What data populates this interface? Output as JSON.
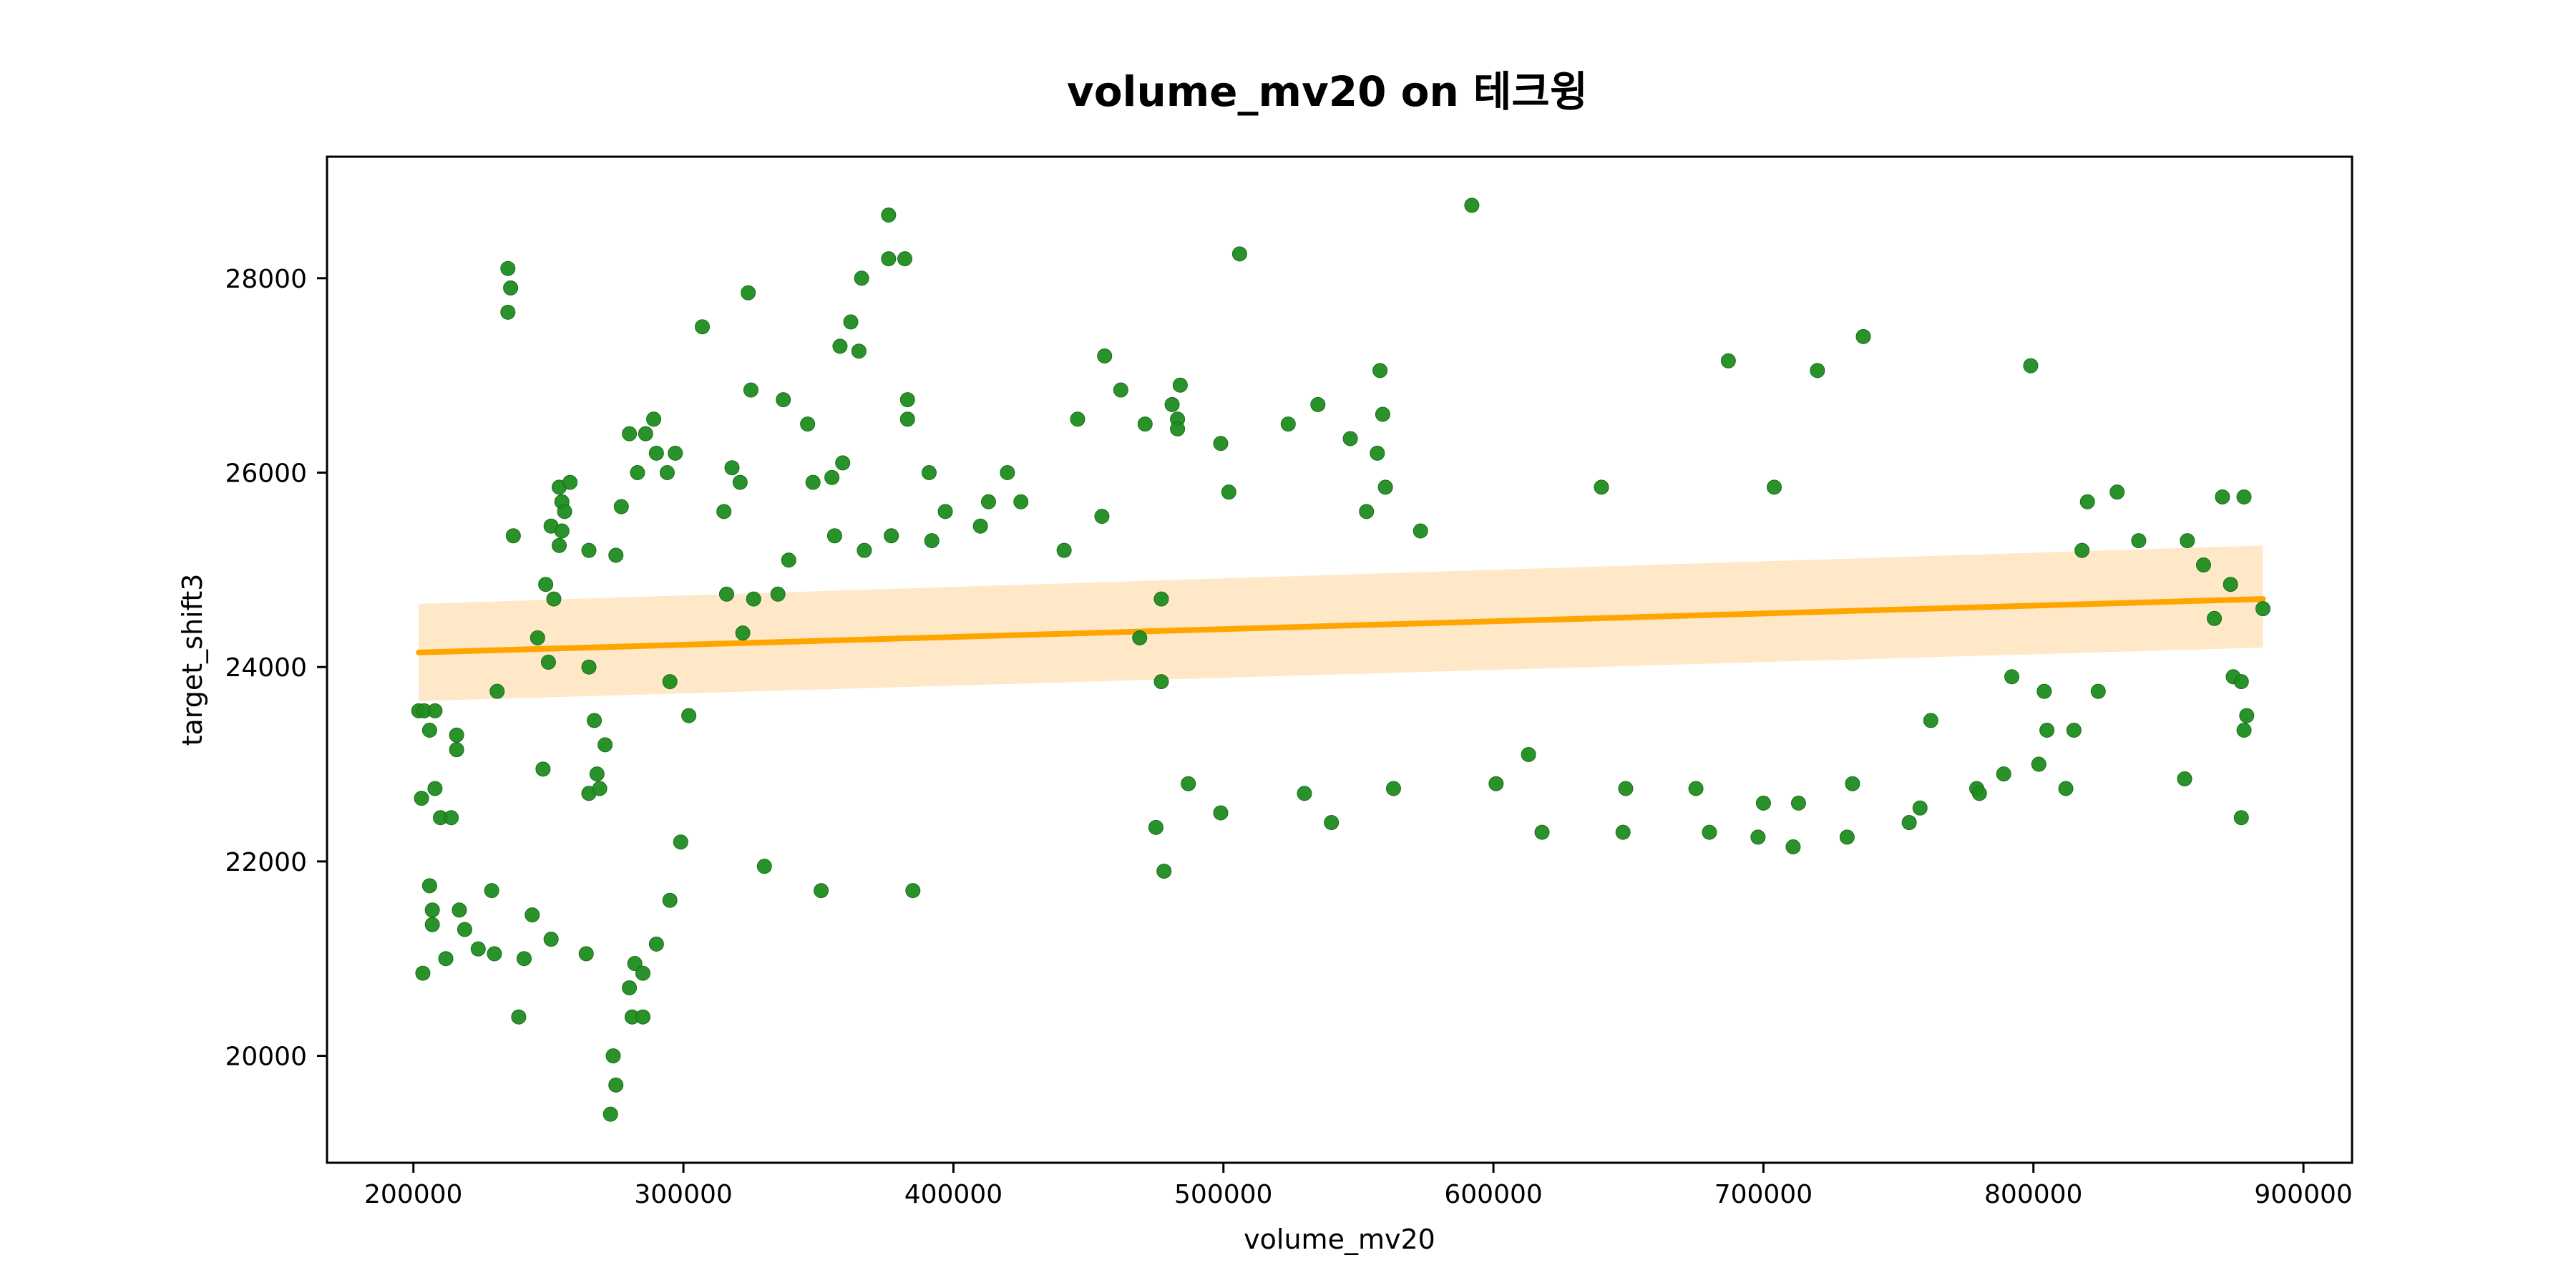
{
  "chart_data": {
    "type": "scatter",
    "title": "volume_mv20 on 테크윙",
    "xlabel": "volume_mv20",
    "ylabel": "target_shift3",
    "xlim": [
      168000,
      918000
    ],
    "ylim": [
      18900,
      29250
    ],
    "xticks": [
      200000,
      300000,
      400000,
      500000,
      600000,
      700000,
      800000,
      900000
    ],
    "yticks": [
      20000,
      22000,
      24000,
      26000,
      28000
    ],
    "grid": false,
    "legend": "none",
    "colors": {
      "points": "#1f8c1f",
      "regression_line": "#ffa500",
      "confidence_band": "#ffe8c8"
    },
    "regression": {
      "x": [
        202000,
        885000
      ],
      "y": [
        24150,
        24700
      ],
      "ci_lower": [
        23650,
        24200
      ],
      "ci_upper": [
        24650,
        25250
      ]
    },
    "points": [
      [
        202000,
        23550
      ],
      [
        203000,
        22650
      ],
      [
        203500,
        20850
      ],
      [
        204000,
        23550
      ],
      [
        206000,
        23350
      ],
      [
        206000,
        21750
      ],
      [
        207000,
        21500
      ],
      [
        207000,
        21350
      ],
      [
        208000,
        23550
      ],
      [
        208000,
        22750
      ],
      [
        210000,
        22450
      ],
      [
        212000,
        21000
      ],
      [
        214000,
        22450
      ],
      [
        216000,
        23300
      ],
      [
        216000,
        23150
      ],
      [
        217000,
        21500
      ],
      [
        219000,
        21300
      ],
      [
        224000,
        21100
      ],
      [
        229000,
        21700
      ],
      [
        230000,
        21050
      ],
      [
        231000,
        23750
      ],
      [
        235000,
        28100
      ],
      [
        235000,
        27650
      ],
      [
        236000,
        27900
      ],
      [
        237000,
        25350
      ],
      [
        239000,
        20400
      ],
      [
        241000,
        21000
      ],
      [
        244000,
        21450
      ],
      [
        246000,
        24300
      ],
      [
        248000,
        22950
      ],
      [
        249000,
        24850
      ],
      [
        250000,
        24050
      ],
      [
        251000,
        25450
      ],
      [
        252000,
        24700
      ],
      [
        251000,
        21200
      ],
      [
        254000,
        25250
      ],
      [
        254000,
        25850
      ],
      [
        255000,
        25700
      ],
      [
        255000,
        25400
      ],
      [
        256000,
        25600
      ],
      [
        258000,
        25900
      ],
      [
        264000,
        21050
      ],
      [
        265000,
        25200
      ],
      [
        265000,
        24000
      ],
      [
        265000,
        22700
      ],
      [
        267000,
        23450
      ],
      [
        268000,
        22900
      ],
      [
        269000,
        22750
      ],
      [
        271000,
        23200
      ],
      [
        273000,
        19400
      ],
      [
        274000,
        20000
      ],
      [
        275000,
        25150
      ],
      [
        275000,
        19700
      ],
      [
        277000,
        25650
      ],
      [
        280000,
        26400
      ],
      [
        280000,
        20700
      ],
      [
        281000,
        20400
      ],
      [
        282000,
        20950
      ],
      [
        283000,
        26000
      ],
      [
        285000,
        20400
      ],
      [
        285000,
        20850
      ],
      [
        286000,
        26400
      ],
      [
        289000,
        26550
      ],
      [
        290000,
        26200
      ],
      [
        290000,
        21150
      ],
      [
        294000,
        26000
      ],
      [
        295000,
        23850
      ],
      [
        295000,
        21600
      ],
      [
        297000,
        26200
      ],
      [
        299000,
        22200
      ],
      [
        302000,
        23500
      ],
      [
        307000,
        27500
      ],
      [
        315000,
        25600
      ],
      [
        316000,
        24750
      ],
      [
        318000,
        26050
      ],
      [
        321000,
        25900
      ],
      [
        322000,
        24350
      ],
      [
        324000,
        27850
      ],
      [
        325000,
        26850
      ],
      [
        326000,
        24700
      ],
      [
        330000,
        21950
      ],
      [
        335000,
        24750
      ],
      [
        337000,
        26750
      ],
      [
        339000,
        25100
      ],
      [
        346000,
        26500
      ],
      [
        348000,
        25900
      ],
      [
        351000,
        21700
      ],
      [
        355000,
        25950
      ],
      [
        356000,
        25350
      ],
      [
        358000,
        27300
      ],
      [
        359000,
        26100
      ],
      [
        362000,
        27550
      ],
      [
        365000,
        27250
      ],
      [
        366000,
        28000
      ],
      [
        367000,
        25200
      ],
      [
        376000,
        28650
      ],
      [
        376000,
        28200
      ],
      [
        377000,
        25350
      ],
      [
        382000,
        28200
      ],
      [
        383000,
        26750
      ],
      [
        383000,
        26550
      ],
      [
        385000,
        21700
      ],
      [
        391000,
        26000
      ],
      [
        392000,
        25300
      ],
      [
        397000,
        25600
      ],
      [
        410000,
        25450
      ],
      [
        413000,
        25700
      ],
      [
        420000,
        26000
      ],
      [
        425000,
        25700
      ],
      [
        441000,
        25200
      ],
      [
        446000,
        26550
      ],
      [
        455000,
        25550
      ],
      [
        456000,
        27200
      ],
      [
        462000,
        26850
      ],
      [
        469000,
        24300
      ],
      [
        471000,
        26500
      ],
      [
        475000,
        22350
      ],
      [
        477000,
        23850
      ],
      [
        477000,
        24700
      ],
      [
        478000,
        21900
      ],
      [
        481000,
        26700
      ],
      [
        483000,
        26550
      ],
      [
        483000,
        26450
      ],
      [
        484000,
        26900
      ],
      [
        487000,
        22800
      ],
      [
        499000,
        22500
      ],
      [
        499000,
        26300
      ],
      [
        502000,
        25800
      ],
      [
        506000,
        28250
      ],
      [
        524000,
        26500
      ],
      [
        530000,
        22700
      ],
      [
        535000,
        26700
      ],
      [
        540000,
        22400
      ],
      [
        547000,
        26350
      ],
      [
        553000,
        25600
      ],
      [
        557000,
        26200
      ],
      [
        558000,
        27050
      ],
      [
        559000,
        26600
      ],
      [
        560000,
        25850
      ],
      [
        563000,
        22750
      ],
      [
        573000,
        25400
      ],
      [
        592000,
        28750
      ],
      [
        601000,
        22800
      ],
      [
        613000,
        23100
      ],
      [
        618000,
        22300
      ],
      [
        640000,
        25850
      ],
      [
        648000,
        22300
      ],
      [
        649000,
        22750
      ],
      [
        675000,
        22750
      ],
      [
        680000,
        22300
      ],
      [
        687000,
        27150
      ],
      [
        698000,
        22250
      ],
      [
        700000,
        22600
      ],
      [
        704000,
        25850
      ],
      [
        711000,
        22150
      ],
      [
        713000,
        22600
      ],
      [
        720000,
        27050
      ],
      [
        731000,
        22250
      ],
      [
        733000,
        22800
      ],
      [
        737000,
        27400
      ],
      [
        754000,
        22400
      ],
      [
        758000,
        22550
      ],
      [
        762000,
        23450
      ],
      [
        779000,
        22750
      ],
      [
        780000,
        22700
      ],
      [
        789000,
        22900
      ],
      [
        792000,
        23900
      ],
      [
        799000,
        27100
      ],
      [
        802000,
        23000
      ],
      [
        804000,
        23750
      ],
      [
        805000,
        23350
      ],
      [
        812000,
        22750
      ],
      [
        815000,
        23350
      ],
      [
        818000,
        25200
      ],
      [
        820000,
        25700
      ],
      [
        824000,
        23750
      ],
      [
        831000,
        25800
      ],
      [
        839000,
        25300
      ],
      [
        856000,
        22850
      ],
      [
        857000,
        25300
      ],
      [
        863000,
        25050
      ],
      [
        867000,
        24500
      ],
      [
        870000,
        25750
      ],
      [
        873000,
        24850
      ],
      [
        874000,
        23900
      ],
      [
        877000,
        22450
      ],
      [
        877000,
        23850
      ],
      [
        878000,
        23350
      ],
      [
        878000,
        25750
      ],
      [
        879000,
        23500
      ],
      [
        885000,
        24600
      ]
    ]
  }
}
